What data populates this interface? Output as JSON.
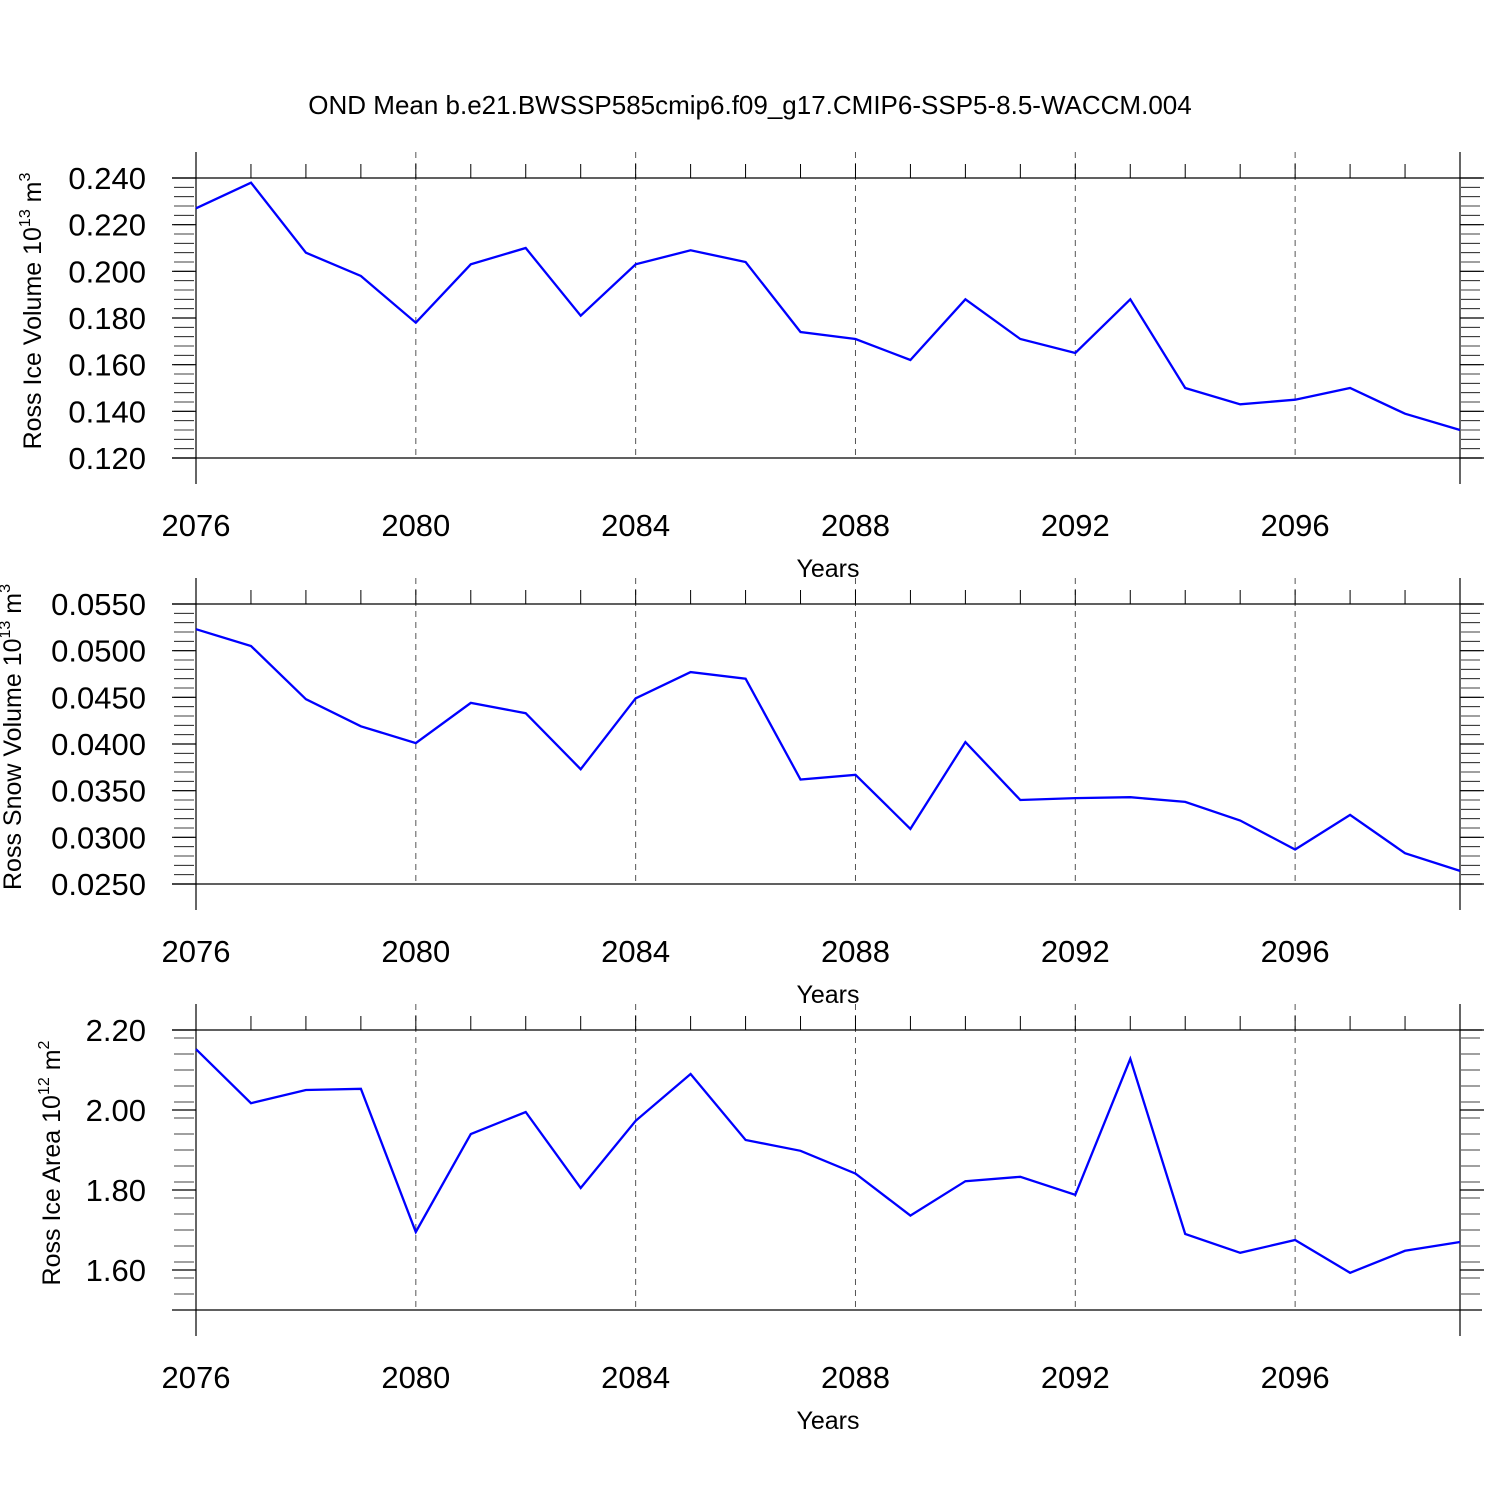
{
  "title": "OND Mean b.e21.BWSSP585cmip6.f09_g17.CMIP6-SSP5-8.5-WACCM.004",
  "colors": {
    "line": "#0000ff",
    "frame": "#000000",
    "grid": "#555555"
  },
  "chart_data": [
    {
      "type": "line",
      "ylabel": "Ross Ice Volume 10",
      "ylabel_exp": "13",
      "ylabel_unit": " m",
      "ylabel_unit_exp": "3",
      "xlabel": "Years",
      "xlim": [
        2076,
        2099
      ],
      "ylim": [
        0.12,
        0.24
      ],
      "xticks": [
        "2076",
        "2080",
        "2084",
        "2088",
        "2092",
        "2096"
      ],
      "xtick_values": [
        2076,
        2080,
        2084,
        2088,
        2092,
        2096
      ],
      "yticks": [
        "0.120",
        "0.140",
        "0.160",
        "0.180",
        "0.200",
        "0.220",
        "0.240"
      ],
      "ytick_values": [
        0.12,
        0.14,
        0.16,
        0.18,
        0.2,
        0.22,
        0.24
      ],
      "x": [
        2076,
        2077,
        2078,
        2079,
        2080,
        2081,
        2082,
        2083,
        2084,
        2085,
        2086,
        2087,
        2088,
        2089,
        2090,
        2091,
        2092,
        2093,
        2094,
        2095,
        2096,
        2097,
        2098,
        2099
      ],
      "series": [
        {
          "name": "Ross Ice Volume",
          "values": [
            0.227,
            0.238,
            0.208,
            0.198,
            0.178,
            0.203,
            0.21,
            0.181,
            0.203,
            0.209,
            0.204,
            0.174,
            0.171,
            0.162,
            0.188,
            0.171,
            0.165,
            0.188,
            0.15,
            0.143,
            0.145,
            0.15,
            0.139,
            0.132
          ]
        }
      ]
    },
    {
      "type": "line",
      "ylabel": "Ross Snow Volume 10",
      "ylabel_exp": "13",
      "ylabel_unit": " m",
      "ylabel_unit_exp": "3",
      "xlabel": "Years",
      "xlim": [
        2076,
        2099
      ],
      "ylim": [
        0.025,
        0.055
      ],
      "xticks": [
        "2076",
        "2080",
        "2084",
        "2088",
        "2092",
        "2096"
      ],
      "xtick_values": [
        2076,
        2080,
        2084,
        2088,
        2092,
        2096
      ],
      "yticks": [
        "0.0250",
        "0.0300",
        "0.0350",
        "0.0400",
        "0.0450",
        "0.0500",
        "0.0550"
      ],
      "ytick_values": [
        0.025,
        0.03,
        0.035,
        0.04,
        0.045,
        0.05,
        0.055
      ],
      "x": [
        2076,
        2077,
        2078,
        2079,
        2080,
        2081,
        2082,
        2083,
        2084,
        2085,
        2086,
        2087,
        2088,
        2089,
        2090,
        2091,
        2092,
        2093,
        2094,
        2095,
        2096,
        2097,
        2098,
        2099
      ],
      "series": [
        {
          "name": "Ross Snow Volume",
          "values": [
            0.0523,
            0.0505,
            0.0448,
            0.0419,
            0.0401,
            0.0444,
            0.0433,
            0.0373,
            0.0449,
            0.0477,
            0.047,
            0.0362,
            0.0367,
            0.0309,
            0.0402,
            0.034,
            0.0342,
            0.0343,
            0.0338,
            0.0318,
            0.0287,
            0.0324,
            0.0283,
            0.0264
          ]
        }
      ]
    },
    {
      "type": "line",
      "ylabel": "Ross Ice Area 10",
      "ylabel_exp": "12",
      "ylabel_unit": " m",
      "ylabel_unit_exp": "2",
      "xlabel": "Years",
      "xlim": [
        2076,
        2099
      ],
      "ylim": [
        1.5,
        2.2
      ],
      "xticks": [
        "2076",
        "2080",
        "2084",
        "2088",
        "2092",
        "2096"
      ],
      "xtick_values": [
        2076,
        2080,
        2084,
        2088,
        2092,
        2096
      ],
      "yticks": [
        "1.60",
        "1.80",
        "2.00",
        "2.20"
      ],
      "ytick_values": [
        1.6,
        1.8,
        2.0,
        2.2
      ],
      "x": [
        2076,
        2077,
        2078,
        2079,
        2080,
        2081,
        2082,
        2083,
        2084,
        2085,
        2086,
        2087,
        2088,
        2089,
        2090,
        2091,
        2092,
        2093,
        2094,
        2095,
        2096,
        2097,
        2098,
        2099
      ],
      "series": [
        {
          "name": "Ross Ice Area",
          "values": [
            2.152,
            2.017,
            2.05,
            2.053,
            1.695,
            1.94,
            1.995,
            1.805,
            1.973,
            2.09,
            1.925,
            1.898,
            1.841,
            1.736,
            1.822,
            1.833,
            1.788,
            2.128,
            1.69,
            1.643,
            1.675,
            1.593,
            1.648,
            1.67
          ]
        }
      ]
    }
  ]
}
